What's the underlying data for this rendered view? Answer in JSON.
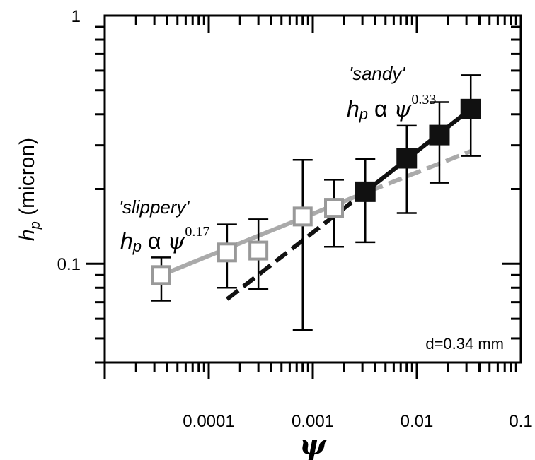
{
  "chart_data": {
    "type": "scatter",
    "xlabel": "ψ",
    "ylabel": "h",
    "ylabel_sub": "p",
    "ylabel_unit": " (micron)",
    "xscale": "log",
    "yscale": "log",
    "xlim": [
      1e-05,
      0.1
    ],
    "ylim": [
      0.04,
      1
    ],
    "x_tick_labels": [
      "0.0001",
      "0.001",
      "0.01",
      "0.1"
    ],
    "x_tick_values": [
      0.0001,
      0.001,
      0.01,
      0.1
    ],
    "y_tick_labels": [
      "0.1",
      "1"
    ],
    "y_tick_values": [
      0.1,
      1
    ],
    "series": [
      {
        "name": "slippery",
        "marker": "open-square",
        "color": "#999999",
        "points": [
          {
            "x": 3.5e-05,
            "y": 0.09,
            "ylo": 0.071,
            "yhi": 0.106
          },
          {
            "x": 0.00015,
            "y": 0.111,
            "ylo": 0.08,
            "yhi": 0.144
          },
          {
            "x": 0.0003,
            "y": 0.113,
            "ylo": 0.079,
            "yhi": 0.151
          },
          {
            "x": 0.0008,
            "y": 0.155,
            "ylo": 0.054,
            "yhi": 0.262
          },
          {
            "x": 0.0016,
            "y": 0.168,
            "ylo": 0.117,
            "yhi": 0.218
          }
        ]
      },
      {
        "name": "sandy",
        "marker": "filled-square",
        "color": "#111111",
        "points": [
          {
            "x": 0.0032,
            "y": 0.195,
            "ylo": 0.122,
            "yhi": 0.264
          },
          {
            "x": 0.008,
            "y": 0.266,
            "ylo": 0.16,
            "yhi": 0.36
          },
          {
            "x": 0.0165,
            "y": 0.33,
            "ylo": 0.212,
            "yhi": 0.448
          },
          {
            "x": 0.033,
            "y": 0.42,
            "ylo": 0.272,
            "yhi": 0.575
          }
        ]
      }
    ],
    "fits": [
      {
        "style": "solid",
        "color": "#aaaaaa",
        "exponent": 0.17,
        "x": [
          3.5e-05,
          0.0023
        ],
        "y": [
          0.09,
          0.183
        ]
      },
      {
        "style": "dashed",
        "color": "#aaaaaa",
        "exponent": 0.17,
        "x": [
          0.0023,
          0.033
        ],
        "y": [
          0.183,
          0.284
        ]
      },
      {
        "style": "dashed",
        "color": "#111111",
        "exponent": 0.33,
        "x": [
          0.00015,
          0.0032
        ],
        "y": [
          0.072,
          0.195
        ]
      },
      {
        "style": "solid",
        "color": "#111111",
        "exponent": 0.33,
        "x": [
          0.0032,
          0.033
        ],
        "y": [
          0.195,
          0.42
        ]
      }
    ],
    "annotations": {
      "slippery_label": "'slippery'",
      "slippery_relation": {
        "h": "h",
        "sub": "p",
        "alpha": " α ",
        "psi": "ψ",
        "exp": "0.17"
      },
      "sandy_label": "'sandy'",
      "sandy_relation": {
        "h": "h",
        "sub": "p",
        "alpha": " α ",
        "psi": "ψ",
        "exp": "0.33"
      },
      "note": "d=0.34 mm"
    }
  }
}
